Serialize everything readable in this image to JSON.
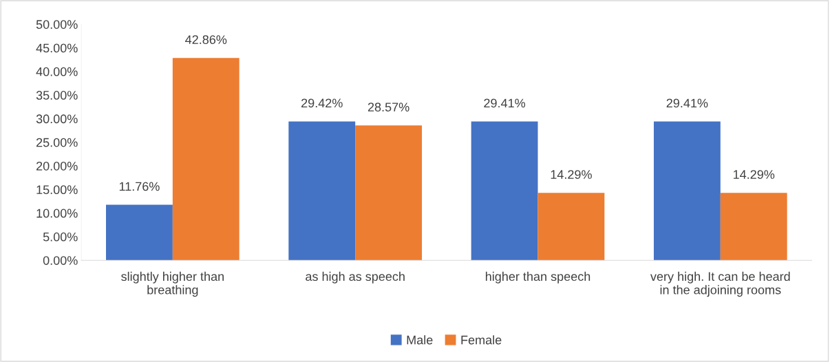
{
  "chart_data": {
    "type": "bar",
    "categories": [
      "slightly higher than\nbreathing",
      "as high as speech",
      "higher than speech",
      "very high. It can be heard\nin the adjoining rooms"
    ],
    "series": [
      {
        "name": "Male",
        "color": "#4472c4",
        "values": [
          11.76,
          29.42,
          29.41,
          29.41
        ],
        "value_labels": [
          "11.76%",
          "29.42%",
          "29.41%",
          "29.41%"
        ]
      },
      {
        "name": "Female",
        "color": "#ed7d31",
        "values": [
          42.86,
          28.57,
          14.29,
          14.29
        ],
        "value_labels": [
          "42.86%",
          "28.57%",
          "14.29%",
          "14.29%"
        ]
      }
    ],
    "ylim": [
      0,
      50
    ],
    "yticks": [
      {
        "value": 0,
        "label": "0.00%"
      },
      {
        "value": 5,
        "label": "5.00%"
      },
      {
        "value": 10,
        "label": "10.00%"
      },
      {
        "value": 15,
        "label": "15.00%"
      },
      {
        "value": 20,
        "label": "20.00%"
      },
      {
        "value": 25,
        "label": "25.00%"
      },
      {
        "value": 30,
        "label": "30.00%"
      },
      {
        "value": 35,
        "label": "35.00%"
      },
      {
        "value": 40,
        "label": "40.00%"
      },
      {
        "value": 45,
        "label": "45.00%"
      },
      {
        "value": 50,
        "label": "50.00%"
      }
    ],
    "grid": false,
    "legend": "bottom"
  }
}
